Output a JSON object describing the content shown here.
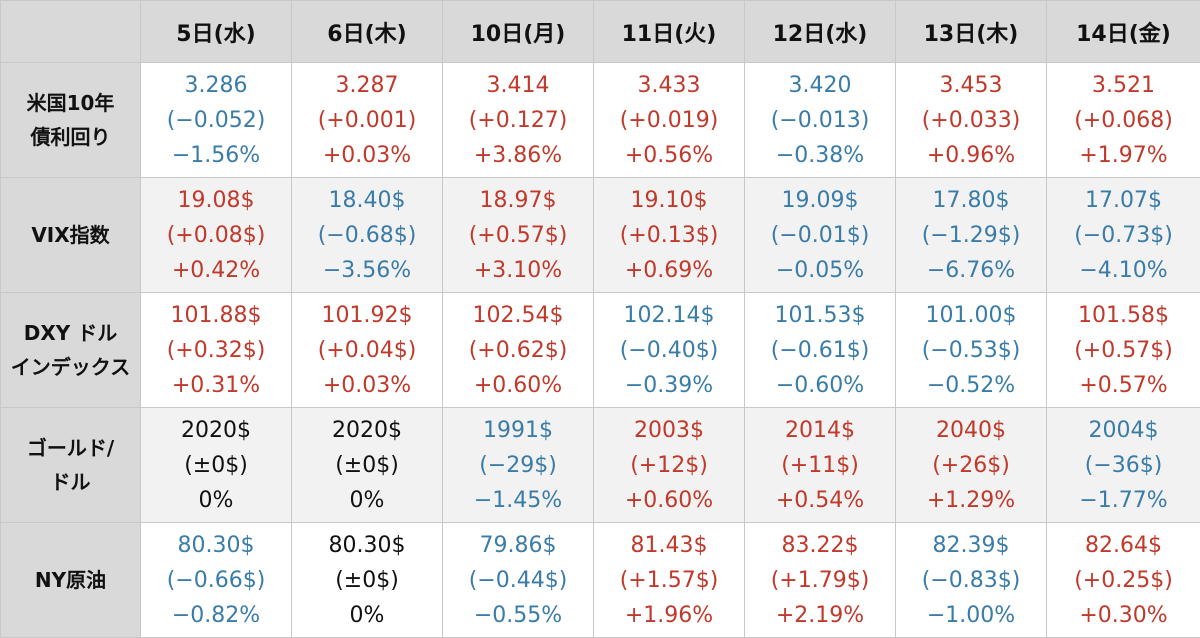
{
  "columns": [
    "5日(水)",
    "6日(木)",
    "10日(月)",
    "11日(火)",
    "12日(水)",
    "13日(木)",
    "14日(金)"
  ],
  "colors": {
    "up": "#c0392b",
    "down": "#3a7ca8",
    "flat": "#111111",
    "header_bg": "#d9d9d9"
  },
  "rows": [
    {
      "label": [
        "米国10年",
        "債利回り"
      ],
      "cells": [
        {
          "dir": "down",
          "value": "3.286",
          "change": "(−0.052)",
          "pct": "−1.56%"
        },
        {
          "dir": "up",
          "value": "3.287",
          "change": "(+0.001)",
          "pct": "+0.03%"
        },
        {
          "dir": "up",
          "value": "3.414",
          "change": "(+0.127)",
          "pct": "+3.86%"
        },
        {
          "dir": "up",
          "value": "3.433",
          "change": "(+0.019)",
          "pct": "+0.56%"
        },
        {
          "dir": "down",
          "value": "3.420",
          "change": "(−0.013)",
          "pct": "−0.38%"
        },
        {
          "dir": "up",
          "value": "3.453",
          "change": "(+0.033)",
          "pct": "+0.96%"
        },
        {
          "dir": "up",
          "value": "3.521",
          "change": "(+0.068)",
          "pct": "+1.97%"
        }
      ]
    },
    {
      "label": [
        "VIX指数"
      ],
      "cells": [
        {
          "dir": "up",
          "value": "19.08$",
          "change": "(+0.08$)",
          "pct": "+0.42%"
        },
        {
          "dir": "down",
          "value": "18.40$",
          "change": "(−0.68$)",
          "pct": "−3.56%"
        },
        {
          "dir": "up",
          "value": "18.97$",
          "change": "(+0.57$)",
          "pct": "+3.10%"
        },
        {
          "dir": "up",
          "value": "19.10$",
          "change": "(+0.13$)",
          "pct": "+0.69%"
        },
        {
          "dir": "down",
          "value": "19.09$",
          "change": "(−0.01$)",
          "pct": "−0.05%"
        },
        {
          "dir": "down",
          "value": "17.80$",
          "change": "(−1.29$)",
          "pct": "−6.76%"
        },
        {
          "dir": "down",
          "value": "17.07$",
          "change": "(−0.73$)",
          "pct": "−4.10%"
        }
      ]
    },
    {
      "label": [
        "DXY ドル",
        "インデックス"
      ],
      "cells": [
        {
          "dir": "up",
          "value": "101.88$",
          "change": "(+0.32$)",
          "pct": "+0.31%"
        },
        {
          "dir": "up",
          "value": "101.92$",
          "change": "(+0.04$)",
          "pct": "+0.03%"
        },
        {
          "dir": "up",
          "value": "102.54$",
          "change": "(+0.62$)",
          "pct": "+0.60%"
        },
        {
          "dir": "down",
          "value": "102.14$",
          "change": "(−0.40$)",
          "pct": "−0.39%"
        },
        {
          "dir": "down",
          "value": "101.53$",
          "change": "(−0.61$)",
          "pct": "−0.60%"
        },
        {
          "dir": "down",
          "value": "101.00$",
          "change": "(−0.53$)",
          "pct": "−0.52%"
        },
        {
          "dir": "up",
          "value": "101.58$",
          "change": "(+0.57$)",
          "pct": "+0.57%"
        }
      ]
    },
    {
      "label": [
        "ゴールド/",
        "ドル"
      ],
      "cells": [
        {
          "dir": "flat",
          "value": "2020$",
          "change": "(±0$)",
          "pct": "0%"
        },
        {
          "dir": "flat",
          "value": "2020$",
          "change": "(±0$)",
          "pct": "0%"
        },
        {
          "dir": "down",
          "value": "1991$",
          "change": "(−29$)",
          "pct": "−1.45%"
        },
        {
          "dir": "up",
          "value": "2003$",
          "change": "(+12$)",
          "pct": "+0.60%"
        },
        {
          "dir": "up",
          "value": "2014$",
          "change": "(+11$)",
          "pct": "+0.54%"
        },
        {
          "dir": "up",
          "value": "2040$",
          "change": "(+26$)",
          "pct": "+1.29%"
        },
        {
          "dir": "down",
          "value": "2004$",
          "change": "(−36$)",
          "pct": "−1.77%"
        }
      ]
    },
    {
      "label": [
        "NY原油"
      ],
      "cells": [
        {
          "dir": "down",
          "value": "80.30$",
          "change": "(−0.66$)",
          "pct": "−0.82%"
        },
        {
          "dir": "flat",
          "value": "80.30$",
          "change": "(±0$)",
          "pct": "0%"
        },
        {
          "dir": "down",
          "value": "79.86$",
          "change": "(−0.44$)",
          "pct": "−0.55%"
        },
        {
          "dir": "up",
          "value": "81.43$",
          "change": "(+1.57$)",
          "pct": "+1.96%"
        },
        {
          "dir": "up",
          "value": "83.22$",
          "change": "(+1.79$)",
          "pct": "+2.19%"
        },
        {
          "dir": "down",
          "value": "82.39$",
          "change": "(−0.83$)",
          "pct": "−1.00%"
        },
        {
          "dir": "up",
          "value": "82.64$",
          "change": "(+0.25$)",
          "pct": "+0.30%"
        }
      ]
    }
  ]
}
